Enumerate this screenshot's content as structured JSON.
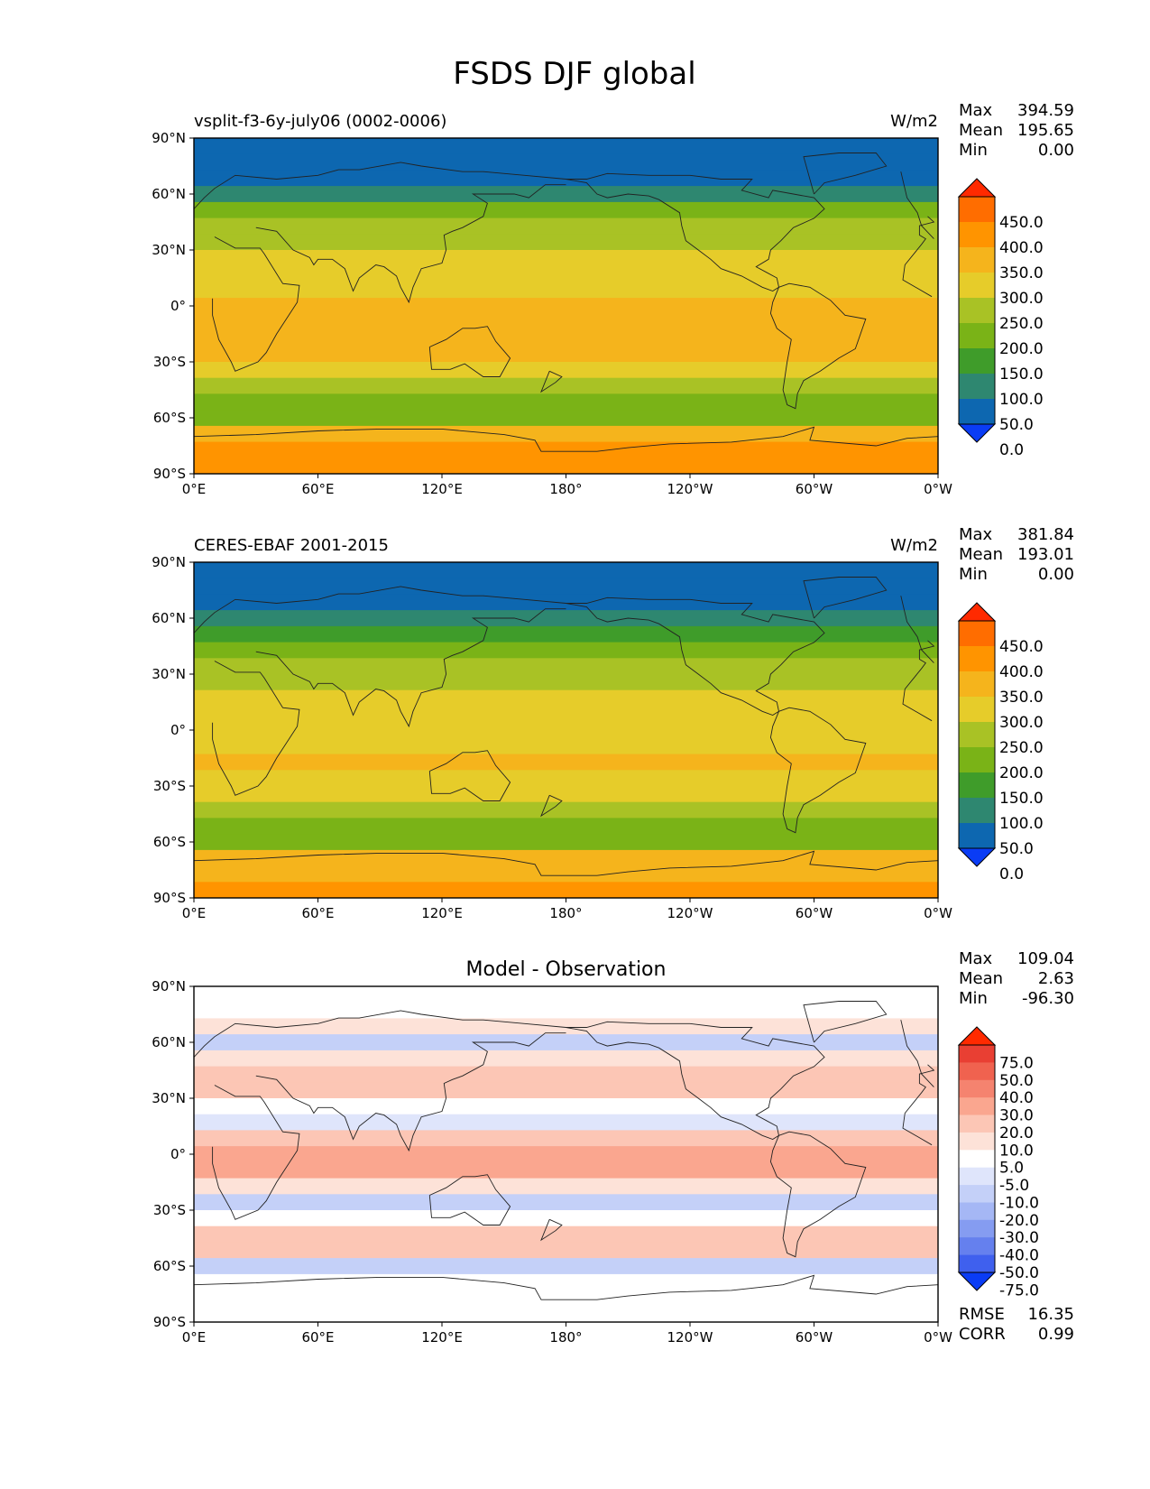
{
  "title": "FSDS DJF global",
  "chart_data": [
    {
      "type": "heatmap",
      "panel": "model",
      "title_left": "vsplit-f3-6y-july06 (0002-0006)",
      "title_right": "W/m2",
      "stats": [
        {
          "label": "Max",
          "value": "394.59"
        },
        {
          "label": "Mean",
          "value": "195.65"
        },
        {
          "label": "Min",
          "value": "0.00"
        }
      ],
      "xticks": [
        "0°E",
        "60°E",
        "120°E",
        "180°",
        "120°W",
        "60°W",
        "0°W"
      ],
      "yticks": [
        "90°N",
        "60°N",
        "30°N",
        "0°",
        "30°S",
        "60°S",
        "90°S"
      ],
      "colorbar_labels": [
        "450.0",
        "400.0",
        "350.0",
        "300.0",
        "250.0",
        "200.0",
        "150.0",
        "100.0",
        "50.0",
        "0.0"
      ],
      "colorbar_colors": [
        "#ff2a00",
        "#ff6d00",
        "#ff9400",
        "#f5b41c",
        "#e6cc2a",
        "#a9c225",
        "#7ab317",
        "#3f9c2a",
        "#2e8770",
        "#0d67b0",
        "#0a3cf5"
      ],
      "lat_band_values": [
        0,
        30,
        45,
        85,
        150,
        205,
        240,
        260,
        270,
        285,
        300,
        315,
        320,
        300,
        270,
        215,
        160,
        170,
        320,
        350,
        360
      ]
    },
    {
      "type": "heatmap",
      "panel": "observation",
      "title_left": "CERES-EBAF 2001-2015",
      "title_right": "W/m2",
      "stats": [
        {
          "label": "Max",
          "value": "381.84"
        },
        {
          "label": "Mean",
          "value": "193.01"
        },
        {
          "label": "Min",
          "value": "0.00"
        }
      ],
      "xticks": [
        "0°E",
        "60°E",
        "120°E",
        "180°",
        "120°W",
        "60°W",
        "0°W"
      ],
      "yticks": [
        "90°N",
        "60°N",
        "30°N",
        "0°",
        "30°S",
        "60°S",
        "90°S"
      ],
      "colorbar_labels": [
        "450.0",
        "400.0",
        "350.0",
        "300.0",
        "250.0",
        "200.0",
        "150.0",
        "100.0",
        "50.0",
        "0.0"
      ],
      "colorbar_colors": [
        "#ff2a00",
        "#ff6d00",
        "#ff9400",
        "#f5b41c",
        "#e6cc2a",
        "#a9c225",
        "#7ab317",
        "#3f9c2a",
        "#2e8770",
        "#0d67b0",
        "#0a3cf5"
      ],
      "lat_band_values": [
        0,
        30,
        45,
        80,
        140,
        195,
        230,
        245,
        255,
        265,
        280,
        295,
        305,
        285,
        260,
        205,
        160,
        165,
        315,
        345,
        355
      ]
    },
    {
      "type": "heatmap",
      "panel": "difference",
      "title_center": "Model - Observation",
      "stats": [
        {
          "label": "Max",
          "value": "109.04"
        },
        {
          "label": "Mean",
          "value": "2.63"
        },
        {
          "label": "Min",
          "value": "-96.30"
        }
      ],
      "metrics": [
        {
          "label": "RMSE",
          "value": "16.35"
        },
        {
          "label": "CORR",
          "value": "0.99"
        }
      ],
      "xticks": [
        "0°E",
        "60°E",
        "120°E",
        "180°",
        "120°W",
        "60°W",
        "0°W"
      ],
      "yticks": [
        "90°N",
        "60°N",
        "30°N",
        "0°",
        "30°S",
        "60°S",
        "90°S"
      ],
      "colorbar_labels": [
        "75.0",
        "50.0",
        "40.0",
        "30.0",
        "20.0",
        "10.0",
        "5.0",
        "-5.0",
        "-10.0",
        "-20.0",
        "-30.0",
        "-40.0",
        "-50.0",
        "-75.0"
      ],
      "colorbar_colors": [
        "#ff2a00",
        "#e93f33",
        "#f0624f",
        "#f5836f",
        "#faa68f",
        "#fcc6b5",
        "#fde2d8",
        "#ffffff",
        "#dfe5fb",
        "#c4d0f8",
        "#a5b7f5",
        "#859cf1",
        "#6580ee",
        "#3f60ee",
        "#0a3cf5"
      ],
      "lat_band_values": [
        0,
        0,
        5,
        -15,
        8,
        12,
        15,
        3,
        -8,
        18,
        22,
        20,
        5,
        -12,
        3,
        10,
        18,
        -15,
        -5,
        0,
        0
      ]
    }
  ]
}
